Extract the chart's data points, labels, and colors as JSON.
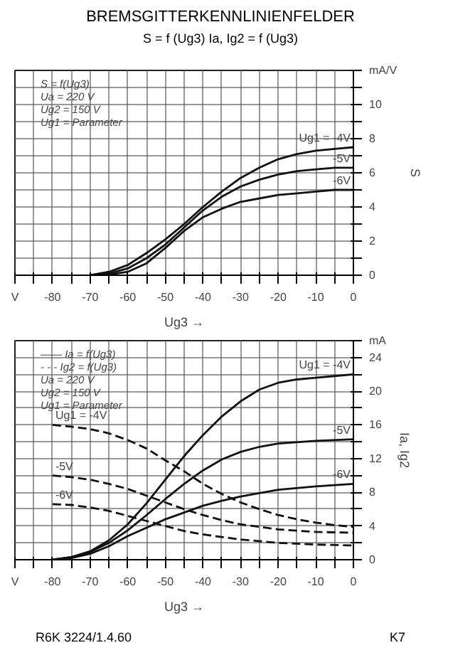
{
  "chart_data": [
    {
      "type": "line",
      "title": "BREMSGITTERKENNLINIENFELDER",
      "subtitle": "S = f (Ug3)     Ia, Ig2 = f (Ug3)",
      "xlabel": "Ug3 →",
      "ylabel": "S",
      "grid": true,
      "xlim": [
        -90,
        0
      ],
      "ylim": [
        0,
        12
      ],
      "xticks": [
        {
          "value": -90,
          "label": "V"
        },
        {
          "value": -85,
          "label": null
        },
        -80,
        {
          "value": -75,
          "label": null
        },
        -70,
        {
          "value": -65,
          "label": null
        },
        -60,
        {
          "value": -55,
          "label": null
        },
        -50,
        {
          "value": -45,
          "label": null
        },
        -40,
        {
          "value": -35,
          "label": null
        },
        -30,
        {
          "value": -25,
          "label": null
        },
        -20,
        {
          "value": -15,
          "label": null
        },
        -10,
        {
          "value": -5,
          "label": null
        },
        0
      ],
      "yticks": [
        0,
        {
          "value": 1,
          "label": null
        },
        2,
        {
          "value": 3,
          "label": null
        },
        4,
        {
          "value": 5,
          "label": null
        },
        6,
        {
          "value": 7,
          "label": null
        },
        8,
        {
          "value": 9,
          "label": null
        },
        10,
        {
          "value": 11,
          "label": null
        },
        {
          "value": 12,
          "label": "mA/V"
        }
      ],
      "annotations": [
        "S = f(Ug3)",
        "Ua = 220 V",
        "Ug2 = 150 V",
        "Ug1 = Parameter"
      ],
      "series": [
        {
          "name": "Ug1 = -4V",
          "color": "#111111",
          "line_style": "solid",
          "x": [
            -70,
            -65,
            -60,
            -55,
            -50,
            -45,
            -40,
            -35,
            -30,
            -25,
            -20,
            -15,
            -10,
            -5,
            0
          ],
          "values": [
            0,
            0.2,
            0.6,
            1.3,
            2.1,
            3.0,
            4.0,
            4.9,
            5.7,
            6.3,
            6.8,
            7.1,
            7.3,
            7.4,
            7.5
          ]
        },
        {
          "name": "-5V",
          "color": "#111111",
          "line_style": "solid",
          "x": [
            -68,
            -65,
            -60,
            -55,
            -50,
            -45,
            -40,
            -35,
            -30,
            -25,
            -20,
            -15,
            -10,
            -5,
            0
          ],
          "values": [
            0,
            0.1,
            0.4,
            1.0,
            1.8,
            2.8,
            3.8,
            4.6,
            5.2,
            5.6,
            5.9,
            6.1,
            6.2,
            6.3,
            6.3
          ]
        },
        {
          "name": "-6V",
          "color": "#111111",
          "line_style": "solid",
          "x": [
            -66,
            -60,
            -55,
            -50,
            -45,
            -40,
            -35,
            -30,
            -25,
            -20,
            -15,
            -10,
            -5,
            0
          ],
          "values": [
            0,
            0.2,
            0.7,
            1.6,
            2.6,
            3.4,
            3.9,
            4.3,
            4.5,
            4.7,
            4.8,
            4.9,
            5.0,
            5.0
          ]
        }
      ]
    },
    {
      "type": "line",
      "xlabel": "Ug3 →",
      "ylabel": "Ia, Ig2",
      "grid": true,
      "xlim": [
        -90,
        0
      ],
      "ylim": [
        0,
        26
      ],
      "xticks": [
        {
          "value": -90,
          "label": "V"
        },
        {
          "value": -85,
          "label": null
        },
        -80,
        {
          "value": -75,
          "label": null
        },
        -70,
        {
          "value": -65,
          "label": null
        },
        -60,
        {
          "value": -55,
          "label": null
        },
        -50,
        {
          "value": -45,
          "label": null
        },
        -40,
        {
          "value": -35,
          "label": null
        },
        -30,
        {
          "value": -25,
          "label": null
        },
        -20,
        {
          "value": -15,
          "label": null
        },
        -10,
        {
          "value": -5,
          "label": null
        },
        0
      ],
      "yticks": [
        0,
        {
          "value": 2,
          "label": null
        },
        4,
        {
          "value": 6,
          "label": null
        },
        8,
        {
          "value": 10,
          "label": null
        },
        12,
        {
          "value": 14,
          "label": null
        },
        16,
        {
          "value": 18,
          "label": null
        },
        20,
        {
          "value": 22,
          "label": null
        },
        24,
        {
          "value": 26,
          "label": "mA"
        }
      ],
      "annotations": [
        "—— Ia = f(Ug3)",
        "- - - Ig2 = f(Ug3)",
        "Ua = 220 V",
        "Ug2 = 150 V",
        "Ug1 = Parameter"
      ],
      "series": [
        {
          "name": "Ug1 = -4V",
          "color": "#111111",
          "line_style": "solid",
          "x": [
            -80,
            -75,
            -70,
            -65,
            -60,
            -55,
            -50,
            -45,
            -40,
            -35,
            -30,
            -25,
            -20,
            -15,
            -10,
            -5,
            0
          ],
          "values": [
            0,
            0.3,
            1,
            2.3,
            4.2,
            6.7,
            9.5,
            12.3,
            14.8,
            17,
            18.8,
            20.2,
            21,
            21.4,
            21.6,
            21.8,
            22
          ]
        },
        {
          "name": "-5V",
          "color": "#111111",
          "line_style": "solid",
          "x": [
            -80,
            -75,
            -70,
            -65,
            -60,
            -55,
            -50,
            -45,
            -40,
            -35,
            -30,
            -25,
            -20,
            -10,
            0
          ],
          "values": [
            0,
            0.3,
            0.9,
            2,
            3.5,
            5.3,
            7.2,
            9,
            10.6,
            11.9,
            12.8,
            13.4,
            13.8,
            14.1,
            14.3
          ]
        },
        {
          "name": "-6V",
          "color": "#111111",
          "line_style": "solid",
          "x": [
            -80,
            -75,
            -70,
            -65,
            -60,
            -55,
            -50,
            -45,
            -40,
            -35,
            -30,
            -25,
            -20,
            -10,
            0
          ],
          "values": [
            0,
            0.2,
            0.7,
            1.6,
            2.8,
            3.8,
            4.8,
            5.6,
            6.4,
            7,
            7.5,
            7.9,
            8.3,
            8.7,
            9
          ]
        },
        {
          "name": "Ug1 = -4V",
          "color": "#111111",
          "line_style": "dashed",
          "x": [
            -80,
            -75,
            -70,
            -65,
            -60,
            -55,
            -50,
            -45,
            -40,
            -35,
            -30,
            -25,
            -20,
            -15,
            -10,
            -5,
            0
          ],
          "values": [
            16,
            15.8,
            15.5,
            15,
            14.2,
            13.2,
            11.8,
            10.5,
            9,
            7.8,
            6.8,
            6,
            5.3,
            4.8,
            4.4,
            4.1,
            3.9
          ]
        },
        {
          "name": "-5V",
          "color": "#111111",
          "line_style": "dashed",
          "x": [
            -80,
            -75,
            -70,
            -65,
            -60,
            -55,
            -50,
            -45,
            -40,
            -35,
            -30,
            -25,
            -20,
            -10,
            0
          ],
          "values": [
            10,
            9.8,
            9.5,
            9,
            8.4,
            7.6,
            6.8,
            6,
            5.3,
            4.7,
            4.2,
            3.9,
            3.6,
            3.3,
            3.2
          ]
        },
        {
          "name": "-6V",
          "color": "#111111",
          "line_style": "dashed",
          "x": [
            -80,
            -75,
            -70,
            -65,
            -60,
            -55,
            -50,
            -45,
            -40,
            -35,
            -30,
            -25,
            -20,
            -10,
            0
          ],
          "values": [
            6.6,
            6.5,
            6.2,
            5.8,
            5.2,
            4.6,
            4,
            3.4,
            3,
            2.7,
            2.4,
            2.2,
            2,
            1.8,
            1.7
          ]
        }
      ]
    },
    {
      "type": "other",
      "annotations": [
        "R6K 3224/1.4.60",
        "K7"
      ]
    }
  ]
}
